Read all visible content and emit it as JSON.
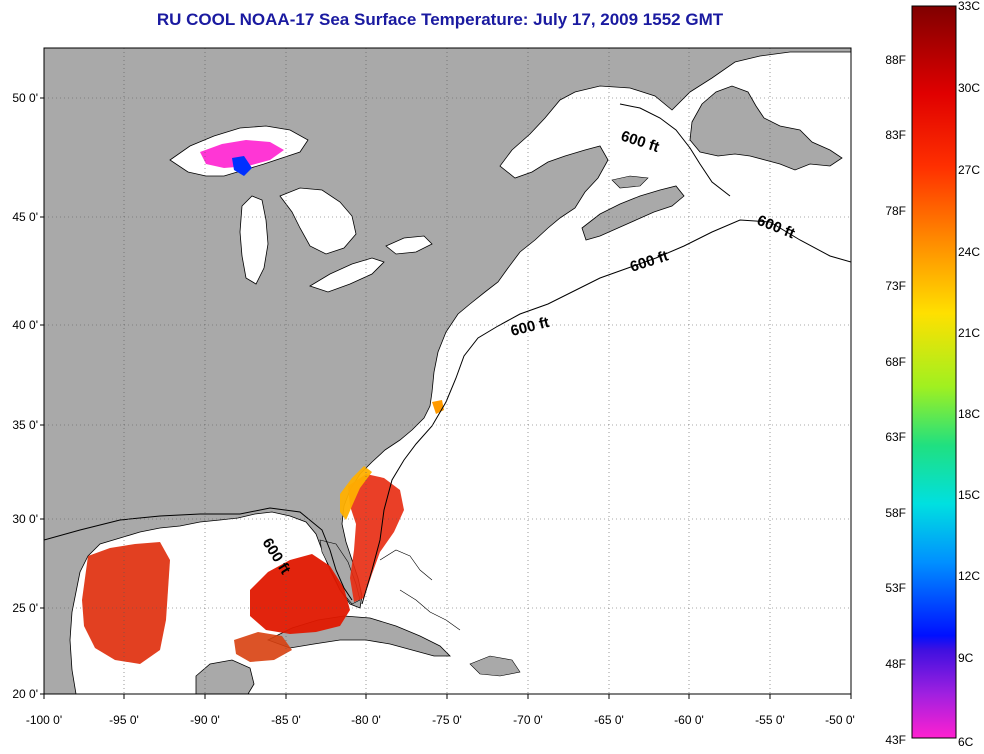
{
  "title": "RU COOL  NOAA-17  Sea Surface Temperature:  July 17, 2009 1552 GMT",
  "axes": {
    "lon_ticks": [
      "-100 0'",
      "-95 0'",
      "-90 0'",
      "-85 0'",
      "-80 0'",
      "-75 0'",
      "-70 0'",
      "-65 0'",
      "-60 0'",
      "-55 0'",
      "-50 0'"
    ],
    "lat_ticks": [
      "50 0'",
      "45 0'",
      "40 0'",
      "35 0'",
      "30 0'",
      "25 0'",
      "20 0'"
    ],
    "lon_range": [
      -100,
      -50
    ],
    "lat_range": [
      20,
      52.5
    ],
    "grid": "dotted"
  },
  "depth_contour": {
    "label": "600 ft"
  },
  "colorbar": {
    "celsius": [
      "33C",
      "30C",
      "27C",
      "24C",
      "21C",
      "18C",
      "15C",
      "12C",
      "9C",
      "6C"
    ],
    "fahrenheit": [
      "88F",
      "83F",
      "78F",
      "73F",
      "68F",
      "63F",
      "58F",
      "53F",
      "48F",
      "43F"
    ],
    "range_c": [
      6,
      33
    ]
  },
  "colors": {
    "land": "#a9a9a9",
    "water": "#ffffff",
    "title": "#1a1aa0",
    "warm": "#dd1100",
    "hot": "#ee2200"
  }
}
